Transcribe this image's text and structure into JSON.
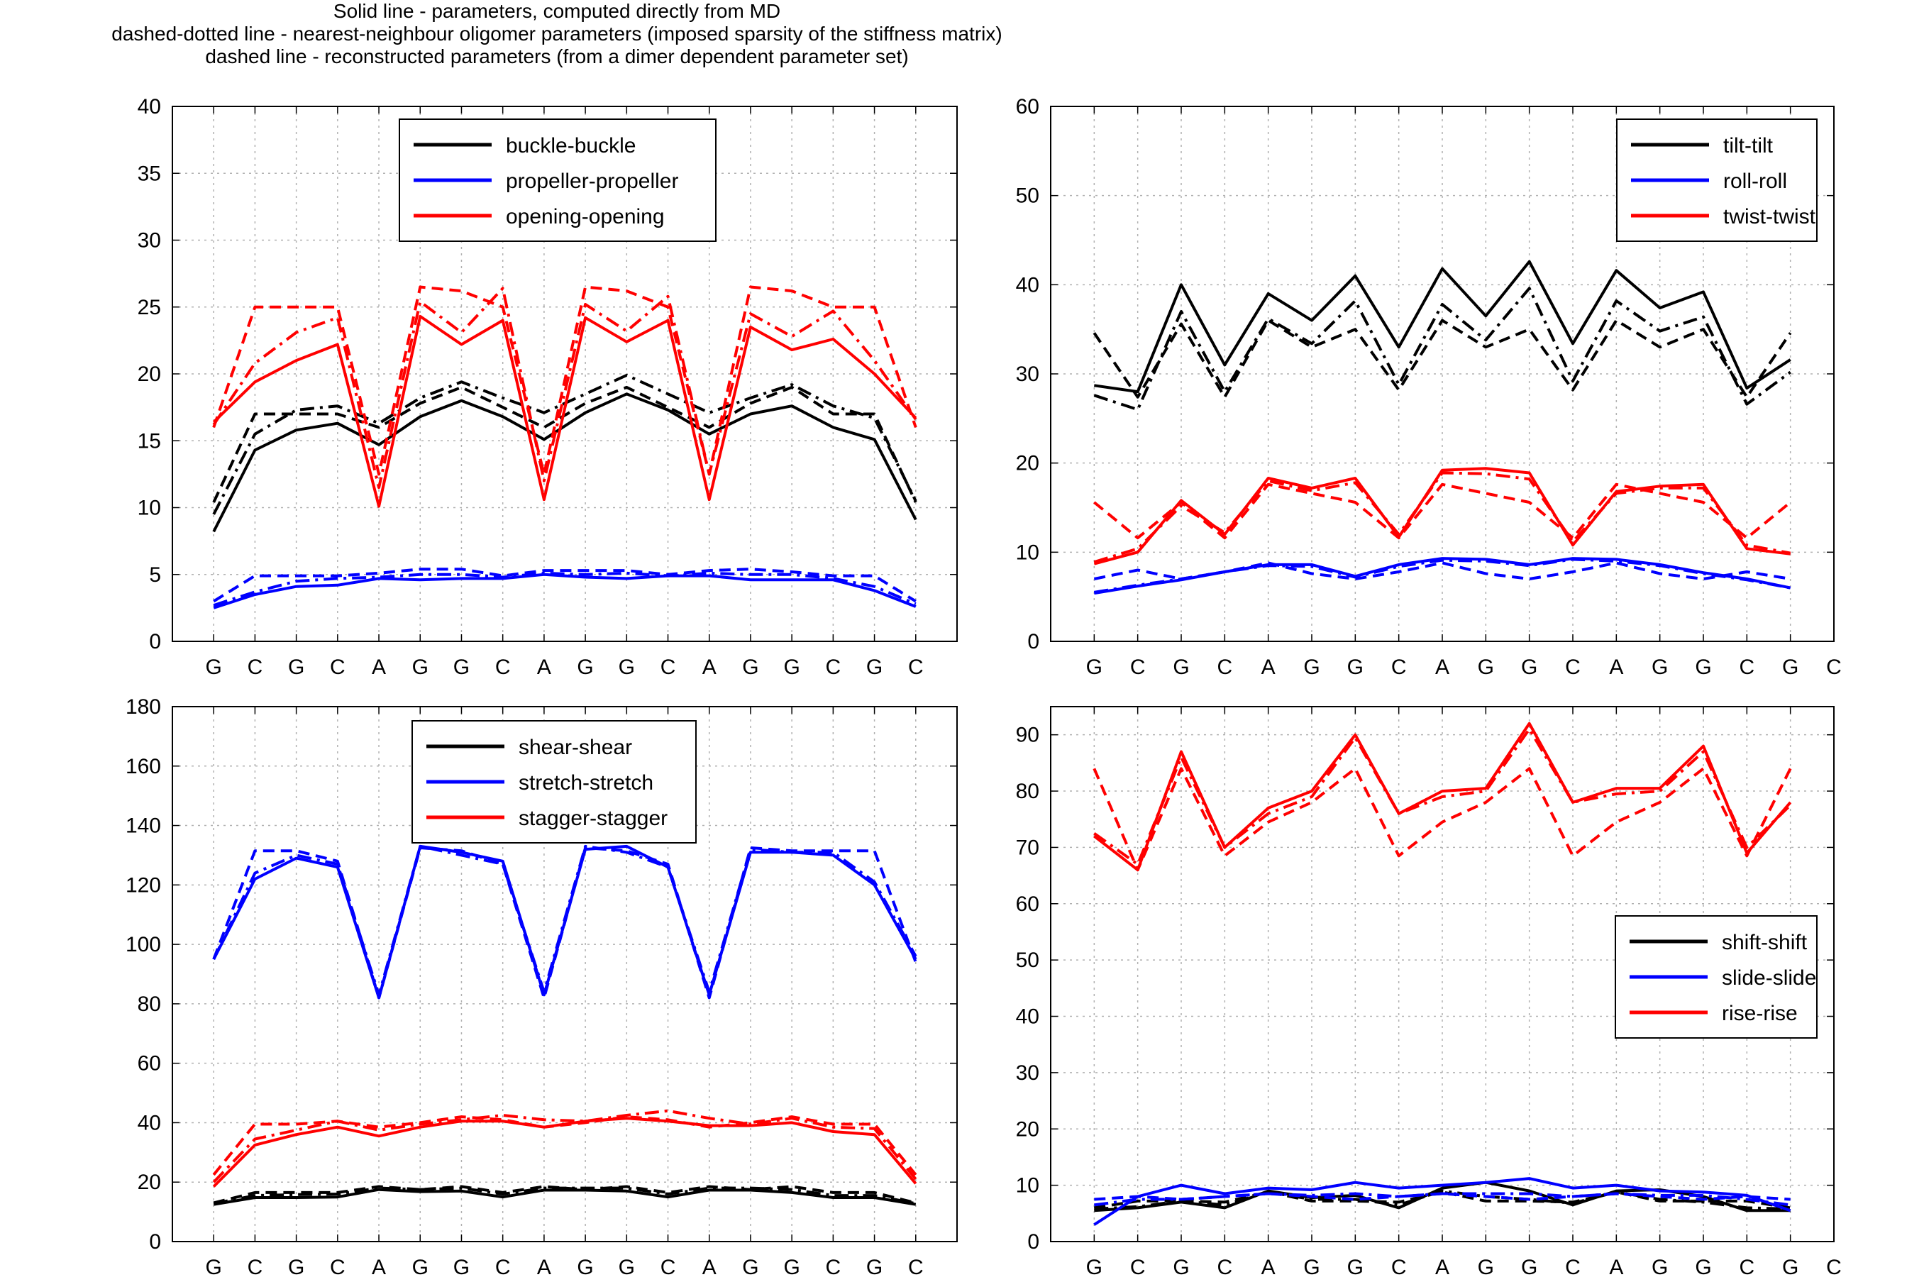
{
  "figure_title": [
    "Solid line - parameters, computed directly from MD",
    "dashed-dotted line - nearest-neighbour oligomer parameters (imposed sparsity of the stiffness matrix)",
    "dashed line - reconstructed parameters (from a dimer dependent parameter set)"
  ],
  "colors": {
    "black": "#000000",
    "blue": "#0000ff",
    "red": "#ff0000",
    "grid": "#b0b0b0"
  },
  "chart_data": [
    {
      "id": "intra-rotational",
      "type": "line",
      "title": "",
      "x_ticks": [
        "G",
        "C",
        "G",
        "C",
        "A",
        "G",
        "G",
        "C",
        "A",
        "G",
        "G",
        "C",
        "A",
        "G",
        "G",
        "C",
        "G",
        "C"
      ],
      "xlim": [
        0,
        19
      ],
      "ylim": [
        0,
        40
      ],
      "yticks": [
        0,
        5,
        10,
        15,
        20,
        25,
        30,
        35,
        40
      ],
      "grid": true,
      "legend_position": "top-center",
      "x": [
        1,
        2,
        3,
        4,
        5,
        6,
        7,
        8,
        9,
        10,
        11,
        12,
        13,
        14,
        15,
        16,
        17,
        18
      ],
      "series": [
        {
          "name": "buckle-buckle",
          "color": "black",
          "style": "solid",
          "values": [
            8.2,
            14.3,
            15.8,
            16.3,
            14.7,
            16.8,
            18.0,
            16.8,
            15.1,
            17.1,
            18.5,
            17.3,
            15.5,
            17.0,
            17.6,
            16.0,
            15.1,
            9.1
          ]
        },
        {
          "name": "",
          "color": "black",
          "style": "dashdot",
          "values": [
            9.5,
            15.5,
            17.3,
            17.6,
            16.3,
            18.2,
            19.4,
            18.2,
            17.1,
            18.5,
            19.9,
            18.5,
            17.1,
            18.2,
            19.2,
            17.6,
            16.7,
            10.5
          ]
        },
        {
          "name": "",
          "color": "black",
          "style": "dashed",
          "values": [
            10.4,
            17.0,
            17.0,
            17.0,
            16.0,
            17.8,
            19.0,
            17.5,
            16.0,
            17.8,
            19.0,
            17.5,
            16.0,
            17.8,
            19.0,
            17.0,
            17.0,
            10.4
          ]
        },
        {
          "name": "propeller-propeller",
          "color": "blue",
          "style": "solid",
          "values": [
            2.5,
            3.5,
            4.1,
            4.2,
            4.7,
            4.6,
            4.7,
            4.7,
            5.0,
            4.8,
            4.7,
            4.9,
            4.9,
            4.6,
            4.6,
            4.6,
            3.8,
            2.6
          ]
        },
        {
          "name": "",
          "color": "blue",
          "style": "dashdot",
          "values": [
            2.7,
            3.7,
            4.5,
            4.7,
            4.8,
            5.0,
            5.0,
            4.8,
            5.1,
            5.0,
            5.1,
            4.9,
            5.1,
            5.0,
            5.0,
            4.7,
            4.1,
            2.8
          ]
        },
        {
          "name": "",
          "color": "blue",
          "style": "dashed",
          "values": [
            3.0,
            4.9,
            4.9,
            4.9,
            5.1,
            5.4,
            5.4,
            4.9,
            5.3,
            5.3,
            5.3,
            5.0,
            5.3,
            5.4,
            5.2,
            4.9,
            4.9,
            3.0
          ]
        },
        {
          "name": "opening-opening",
          "color": "red",
          "style": "solid",
          "values": [
            16.4,
            19.4,
            21.0,
            22.2,
            10.1,
            24.3,
            22.2,
            24.0,
            10.6,
            24.2,
            22.4,
            24.0,
            10.6,
            23.5,
            21.8,
            22.6,
            20.0,
            16.7
          ]
        },
        {
          "name": "",
          "color": "red",
          "style": "dashdot",
          "values": [
            16.2,
            20.8,
            23.1,
            24.2,
            11.5,
            25.4,
            23.1,
            26.4,
            12.0,
            25.2,
            23.2,
            25.8,
            12.5,
            24.5,
            22.8,
            24.7,
            21.0,
            16.6
          ]
        },
        {
          "name": "",
          "color": "red",
          "style": "dashed",
          "values": [
            16.0,
            25.0,
            25.0,
            25.0,
            12.5,
            26.5,
            26.2,
            25.0,
            12.5,
            26.5,
            26.2,
            25.0,
            12.5,
            26.5,
            26.2,
            25.0,
            25.0,
            16.0
          ]
        }
      ]
    },
    {
      "id": "inter-rotational",
      "type": "line",
      "title": "",
      "x_ticks": [
        "G",
        "C",
        "G",
        "C",
        "A",
        "G",
        "G",
        "C",
        "A",
        "G",
        "G",
        "C",
        "A",
        "G",
        "G",
        "C",
        "G",
        "C"
      ],
      "xlim": [
        0,
        18
      ],
      "ylim": [
        0,
        60
      ],
      "yticks": [
        0,
        10,
        20,
        30,
        40,
        50,
        60
      ],
      "grid": true,
      "legend_position": "top-right",
      "x": [
        1,
        2,
        3,
        4,
        5,
        6,
        7,
        8,
        9,
        10,
        11,
        12,
        13,
        14,
        15,
        16,
        17
      ],
      "series": [
        {
          "name": "tilt-tilt",
          "color": "black",
          "style": "solid",
          "values": [
            28.7,
            28.0,
            40.0,
            31.0,
            39.0,
            36.0,
            41.0,
            33.0,
            41.8,
            36.5,
            42.6,
            33.4,
            41.6,
            37.4,
            39.2,
            28.4,
            31.6
          ]
        },
        {
          "name": "",
          "color": "black",
          "style": "dashdot",
          "values": [
            27.6,
            26.0,
            37.0,
            28.0,
            36.2,
            33.4,
            38.2,
            28.8,
            37.8,
            33.8,
            39.6,
            29.2,
            38.2,
            34.8,
            36.4,
            26.6,
            30.2
          ]
        },
        {
          "name": "",
          "color": "black",
          "style": "dashed",
          "values": [
            34.6,
            27.4,
            35.6,
            27.4,
            36.0,
            33.0,
            35.0,
            28.2,
            36.0,
            33.0,
            35.0,
            28.2,
            36.0,
            33.0,
            35.0,
            27.4,
            34.6
          ]
        },
        {
          "name": "roll-roll",
          "color": "blue",
          "style": "solid",
          "values": [
            5.4,
            6.2,
            6.9,
            7.8,
            8.6,
            8.6,
            7.3,
            8.6,
            9.3,
            9.2,
            8.6,
            9.3,
            9.2,
            8.6,
            7.7,
            7.0,
            6.0
          ]
        },
        {
          "name": "",
          "color": "blue",
          "style": "dashdot",
          "values": [
            5.5,
            6.3,
            7.0,
            7.8,
            8.5,
            8.4,
            7.2,
            8.4,
            9.1,
            9.0,
            8.5,
            9.2,
            9.0,
            8.5,
            7.6,
            6.9,
            6.0
          ]
        },
        {
          "name": "",
          "color": "blue",
          "style": "dashed",
          "values": [
            7.0,
            8.0,
            7.0,
            7.8,
            8.8,
            7.6,
            7.0,
            7.8,
            8.8,
            7.6,
            7.0,
            7.8,
            8.8,
            7.6,
            7.0,
            7.8,
            7.0
          ]
        },
        {
          "name": "twist-twist",
          "color": "red",
          "style": "solid",
          "values": [
            8.7,
            10.0,
            15.8,
            12.0,
            18.3,
            17.2,
            18.3,
            11.7,
            19.2,
            19.4,
            18.9,
            10.8,
            16.8,
            17.4,
            17.6,
            10.4,
            9.8
          ]
        },
        {
          "name": "",
          "color": "red",
          "style": "dashdot",
          "values": [
            8.9,
            10.4,
            15.2,
            12.2,
            18.0,
            16.9,
            17.8,
            12.0,
            18.9,
            18.8,
            18.2,
            11.2,
            16.6,
            17.2,
            17.2,
            10.8,
            9.9
          ]
        },
        {
          "name": "",
          "color": "red",
          "style": "dashed",
          "values": [
            15.6,
            11.6,
            15.6,
            11.6,
            17.6,
            16.6,
            15.6,
            11.6,
            17.6,
            16.6,
            15.6,
            11.6,
            17.6,
            16.6,
            15.6,
            11.6,
            15.6
          ]
        }
      ]
    },
    {
      "id": "intra-translational",
      "type": "line",
      "title": "",
      "x_ticks": [
        "G",
        "C",
        "G",
        "C",
        "A",
        "G",
        "G",
        "C",
        "A",
        "G",
        "G",
        "C",
        "A",
        "G",
        "G",
        "C",
        "G",
        "C"
      ],
      "xlim": [
        0,
        19
      ],
      "ylim": [
        0,
        180
      ],
      "yticks": [
        0,
        20,
        40,
        60,
        80,
        100,
        120,
        140,
        160,
        180
      ],
      "grid": true,
      "legend_position": "top-center",
      "x": [
        1,
        2,
        3,
        4,
        5,
        6,
        7,
        8,
        9,
        10,
        11,
        12,
        13,
        14,
        15,
        16,
        17,
        18
      ],
      "series": [
        {
          "name": "shear-shear",
          "color": "black",
          "style": "solid",
          "values": [
            12.5,
            14.8,
            14.8,
            15.0,
            17.5,
            16.8,
            17.0,
            15.0,
            17.3,
            17.3,
            17.0,
            15.0,
            17.3,
            17.3,
            16.5,
            14.8,
            14.8,
            12.5
          ]
        },
        {
          "name": "",
          "color": "black",
          "style": "dashdot",
          "values": [
            12.8,
            15.5,
            15.8,
            16.0,
            18.0,
            17.5,
            18.0,
            16.0,
            18.0,
            18.0,
            18.0,
            16.0,
            18.0,
            18.0,
            17.5,
            15.5,
            15.5,
            12.8
          ]
        },
        {
          "name": "",
          "color": "black",
          "style": "dashed",
          "values": [
            13.0,
            16.5,
            16.5,
            16.5,
            18.5,
            17.5,
            18.5,
            16.5,
            18.5,
            17.5,
            18.5,
            16.5,
            18.5,
            17.5,
            18.5,
            16.5,
            16.5,
            13.0
          ]
        },
        {
          "name": "stretch-stretch",
          "color": "blue",
          "style": "solid",
          "values": [
            95,
            122,
            129,
            126,
            82,
            133,
            131,
            128,
            83,
            132,
            133,
            126,
            83,
            131,
            131,
            130,
            120,
            95
          ]
        },
        {
          "name": "",
          "color": "blue",
          "style": "dashdot",
          "values": [
            95,
            124,
            130,
            127,
            83,
            133,
            130,
            127,
            84,
            133,
            131,
            126,
            84,
            132,
            131,
            131,
            121,
            96
          ]
        },
        {
          "name": "",
          "color": "blue",
          "style": "dashed",
          "values": [
            95,
            131.5,
            131.5,
            128,
            82,
            132.5,
            131.5,
            127,
            82,
            132.5,
            131.5,
            127,
            82,
            132.5,
            131.5,
            131.5,
            131.5,
            94
          ]
        },
        {
          "name": "stagger-stagger",
          "color": "red",
          "style": "solid",
          "values": [
            18.5,
            32.5,
            36,
            38.5,
            35.5,
            38.5,
            40.5,
            40.5,
            38.5,
            40.5,
            41.5,
            40.5,
            39.0,
            39.0,
            40.0,
            37.0,
            36.0,
            19.5
          ]
        },
        {
          "name": "",
          "color": "red",
          "style": "dashdot",
          "values": [
            20.0,
            34.5,
            37.5,
            40.5,
            37.5,
            39.5,
            41.0,
            42.5,
            41.0,
            40.5,
            42.5,
            44.0,
            41.5,
            39.5,
            41.5,
            38.5,
            38.0,
            21.0
          ]
        },
        {
          "name": "",
          "color": "red",
          "style": "dashed",
          "values": [
            22.5,
            39.5,
            39.5,
            40.5,
            38.5,
            40.0,
            42.0,
            41.0,
            38.5,
            40.0,
            42.0,
            41.0,
            38.5,
            40.0,
            42.0,
            39.5,
            39.5,
            22.5
          ]
        }
      ]
    },
    {
      "id": "inter-translational",
      "type": "line",
      "title": "",
      "x_ticks": [
        "G",
        "C",
        "G",
        "C",
        "A",
        "G",
        "G",
        "C",
        "A",
        "G",
        "G",
        "C",
        "A",
        "G",
        "G",
        "C",
        "G",
        "C"
      ],
      "xlim": [
        0,
        18
      ],
      "ylim": [
        0,
        95
      ],
      "yticks": [
        0,
        10,
        20,
        30,
        40,
        50,
        60,
        70,
        80,
        90
      ],
      "grid": true,
      "legend_position": "right",
      "x": [
        1,
        2,
        3,
        4,
        5,
        6,
        7,
        8,
        9,
        10,
        11,
        12,
        13,
        14,
        15,
        16,
        17
      ],
      "series": [
        {
          "name": "shift-shift",
          "color": "black",
          "style": "solid",
          "values": [
            5.5,
            6.0,
            7.0,
            6.0,
            9.0,
            7.8,
            8.2,
            6.0,
            9.5,
            10.5,
            9.0,
            6.5,
            9.0,
            9.2,
            8.0,
            5.5,
            5.5
          ]
        },
        {
          "name": "",
          "color": "black",
          "style": "dashdot",
          "values": [
            5.8,
            6.2,
            7.2,
            6.5,
            8.8,
            7.5,
            7.5,
            6.5,
            9.0,
            8.0,
            7.5,
            6.8,
            8.8,
            7.5,
            7.0,
            6.0,
            5.8
          ]
        },
        {
          "name": "",
          "color": "black",
          "style": "dashed",
          "values": [
            6.0,
            7.2,
            7.2,
            7.0,
            8.8,
            7.2,
            7.2,
            7.0,
            8.8,
            7.2,
            7.2,
            7.0,
            8.8,
            7.2,
            7.2,
            7.2,
            6.0
          ]
        },
        {
          "name": "slide-slide",
          "color": "blue",
          "style": "solid",
          "values": [
            3.0,
            8.0,
            10.0,
            8.5,
            9.5,
            9.2,
            10.5,
            9.5,
            10.0,
            10.5,
            11.2,
            9.5,
            10.0,
            9.0,
            8.8,
            8.2,
            5.5
          ]
        },
        {
          "name": "",
          "color": "blue",
          "style": "dashdot",
          "values": [
            6.5,
            7.5,
            7.5,
            8.0,
            8.5,
            8.2,
            8.5,
            8.0,
            8.5,
            8.5,
            8.5,
            8.0,
            8.5,
            8.2,
            8.2,
            7.5,
            6.5
          ]
        },
        {
          "name": "",
          "color": "blue",
          "style": "dashed",
          "values": [
            7.5,
            8.0,
            7.5,
            8.0,
            8.5,
            8.0,
            7.5,
            8.0,
            8.5,
            8.0,
            7.5,
            8.0,
            8.5,
            8.0,
            7.5,
            8.0,
            7.5
          ]
        },
        {
          "name": "rise-rise",
          "color": "red",
          "style": "solid",
          "values": [
            72,
            66,
            87,
            70,
            77,
            80,
            90,
            76,
            80,
            80.5,
            92,
            78,
            80.5,
            80.5,
            88,
            69,
            78
          ]
        },
        {
          "name": "",
          "color": "red",
          "style": "dashdot",
          "values": [
            72.5,
            67,
            86,
            70,
            76,
            79,
            89.5,
            76,
            79,
            80,
            91,
            78,
            79.5,
            80,
            87,
            70,
            77.5
          ]
        },
        {
          "name": "",
          "color": "red",
          "style": "dashed",
          "values": [
            84,
            66,
            84,
            68.5,
            74.5,
            78,
            84,
            68.5,
            74.5,
            78,
            84,
            68.5,
            74.5,
            78,
            84,
            68.5,
            84
          ]
        }
      ]
    }
  ]
}
